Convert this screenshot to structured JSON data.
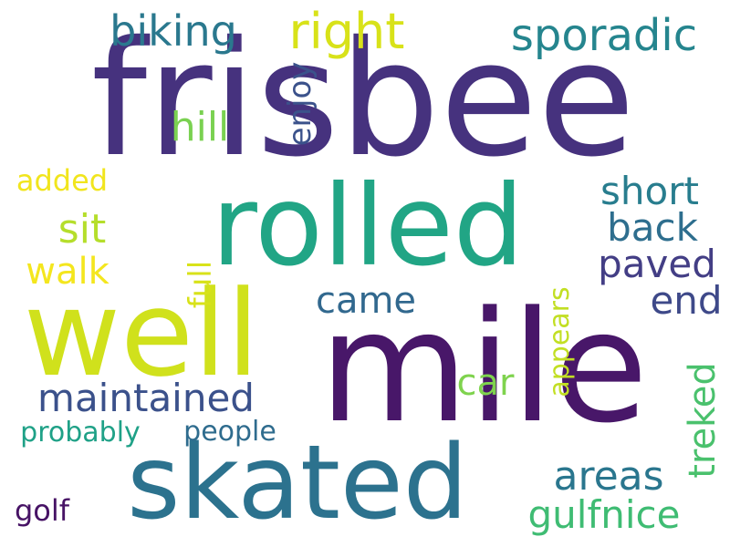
{
  "words": [
    {
      "id": "frisbee",
      "text": "frisbee",
      "color": "#46327e",
      "vertical": false
    },
    {
      "id": "rolled",
      "text": "rolled",
      "color": "#21a585",
      "vertical": false
    },
    {
      "id": "well",
      "text": "well",
      "color": "#d0e11c",
      "vertical": false
    },
    {
      "id": "mile",
      "text": "mile",
      "color": "#481769",
      "vertical": false
    },
    {
      "id": "skated",
      "text": "skated",
      "color": "#2c728e",
      "vertical": false
    },
    {
      "id": "biking",
      "text": "biking",
      "color": "#2a788e",
      "vertical": false
    },
    {
      "id": "right",
      "text": "right",
      "color": "#d8e219",
      "vertical": false
    },
    {
      "id": "sporadic",
      "text": "sporadic",
      "color": "#25858e",
      "vertical": false
    },
    {
      "id": "hill",
      "text": "hill",
      "color": "#7ad151",
      "vertical": false
    },
    {
      "id": "enjoy",
      "text": "enjoy",
      "color": "#3b528b",
      "vertical": true
    },
    {
      "id": "added",
      "text": "added",
      "color": "#f1e51d",
      "vertical": false
    },
    {
      "id": "short",
      "text": "short",
      "color": "#287d8e",
      "vertical": false
    },
    {
      "id": "sit",
      "text": "sit",
      "color": "#b5de2b",
      "vertical": false
    },
    {
      "id": "back",
      "text": "back",
      "color": "#2e6e8e",
      "vertical": false
    },
    {
      "id": "walk",
      "text": "walk",
      "color": "#f4e61e",
      "vertical": false
    },
    {
      "id": "paved",
      "text": "paved",
      "color": "#433e85",
      "vertical": false
    },
    {
      "id": "full",
      "text": "full",
      "color": "#d8e219",
      "vertical": true
    },
    {
      "id": "came",
      "text": "came",
      "color": "#31688e",
      "vertical": false
    },
    {
      "id": "end",
      "text": "end",
      "color": "#3e4989",
      "vertical": false
    },
    {
      "id": "appears",
      "text": "appears",
      "color": "#c2df23",
      "vertical": true
    },
    {
      "id": "maintained",
      "text": "maintained",
      "color": "#3b518b",
      "vertical": false
    },
    {
      "id": "car",
      "text": "car",
      "color": "#7fd34e",
      "vertical": false
    },
    {
      "id": "treked",
      "text": "treked",
      "color": "#4ac16d",
      "vertical": true
    },
    {
      "id": "probably",
      "text": "probably",
      "color": "#1fa187",
      "vertical": false
    },
    {
      "id": "people",
      "text": "people",
      "color": "#2f6c8e",
      "vertical": false
    },
    {
      "id": "areas",
      "text": "areas",
      "color": "#2a768e",
      "vertical": false
    },
    {
      "id": "golf",
      "text": "golf",
      "color": "#471365",
      "vertical": false
    },
    {
      "id": "gulfnice",
      "text": "gulfnice",
      "color": "#3fbc73",
      "vertical": false
    }
  ]
}
